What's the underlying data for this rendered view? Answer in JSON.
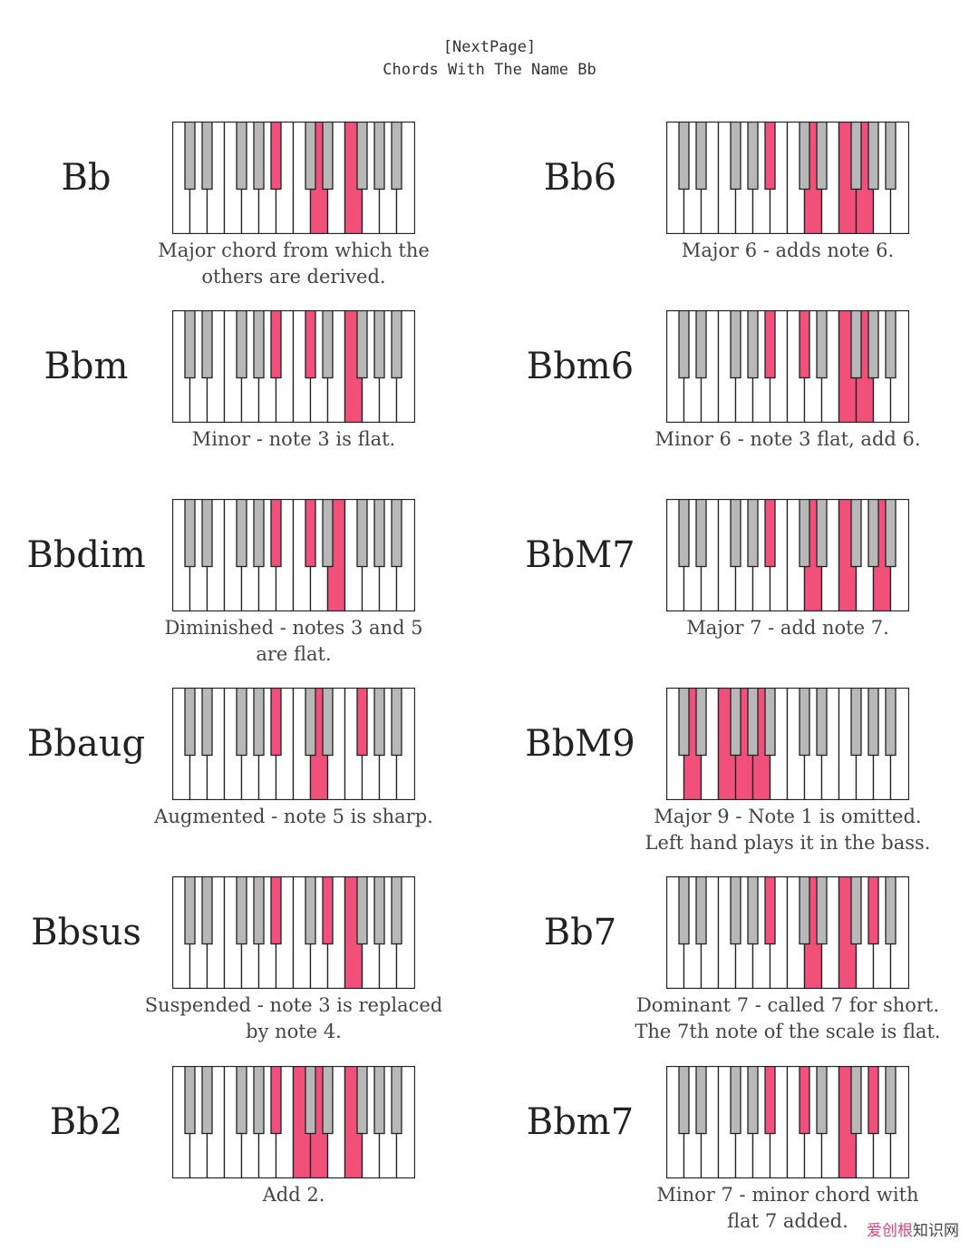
{
  "header": {
    "next_page": "[NextPage]",
    "title": "Chords With The Name Bb"
  },
  "colors": {
    "highlight": "#f0507a",
    "black_key": "#b8b8b8",
    "outline": "#222222"
  },
  "chords": [
    {
      "name": "Bb",
      "desc": [
        "Major chord from which the",
        "others are derived."
      ],
      "notes": [
        10,
        14,
        17
      ]
    },
    {
      "name": "Bb6",
      "desc": [
        "Major 6 - adds note 6."
      ],
      "notes": [
        10,
        14,
        17,
        19
      ]
    },
    {
      "name": "Bbm",
      "desc": [
        "Minor - note 3 is flat."
      ],
      "notes": [
        10,
        13,
        17
      ]
    },
    {
      "name": "Bbm6",
      "desc": [
        "Minor 6 - note 3 flat, add 6."
      ],
      "notes": [
        10,
        13,
        17,
        19
      ]
    },
    {
      "name": "Bbdim",
      "desc": [
        "Diminished - notes 3 and 5",
        "are flat."
      ],
      "notes": [
        10,
        13,
        16
      ]
    },
    {
      "name": "BbM7",
      "desc": [
        "Major 7 - add note 7."
      ],
      "notes": [
        10,
        14,
        17,
        21
      ]
    },
    {
      "name": "Bbaug",
      "desc": [
        "Augmented - note 5 is sharp."
      ],
      "notes": [
        10,
        14,
        18
      ]
    },
    {
      "name": "BbM9",
      "desc": [
        "Major 9 - Note 1 is omitted.",
        "Left hand plays it in the bass."
      ],
      "notes": [
        2,
        5,
        7,
        9
      ]
    },
    {
      "name": "Bbsus",
      "desc": [
        "Suspended - note 3 is replaced",
        "by note 4."
      ],
      "notes": [
        10,
        15,
        17
      ]
    },
    {
      "name": "Bb7",
      "desc": [
        "Dominant 7 - called 7 for short.",
        "The 7th note of the scale is flat."
      ],
      "notes": [
        10,
        14,
        17,
        20
      ]
    },
    {
      "name": "Bb2",
      "desc": [
        "Add 2."
      ],
      "notes": [
        10,
        12,
        14,
        17
      ]
    },
    {
      "name": "Bbm7",
      "desc": [
        "Minor 7 - minor chord with",
        "flat 7 added."
      ],
      "notes": [
        10,
        13,
        17,
        20
      ]
    }
  ],
  "watermark": {
    "brand": "爱创根",
    "text": "知识网"
  }
}
